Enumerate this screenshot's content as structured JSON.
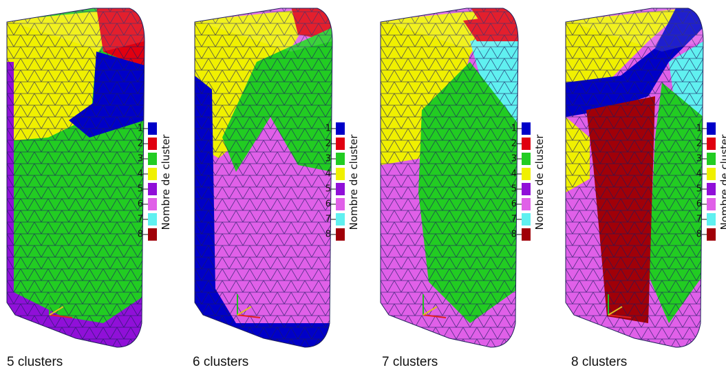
{
  "legend": {
    "title": "Nombre de cluster",
    "items": [
      {
        "label": "1",
        "color": "#0000c8"
      },
      {
        "label": "2",
        "color": "#e00010"
      },
      {
        "label": "3",
        "color": "#22cc22"
      },
      {
        "label": "4",
        "color": "#f0f000"
      },
      {
        "label": "5",
        "color": "#9010d8"
      },
      {
        "label": "6",
        "color": "#e060e8"
      },
      {
        "label": "7",
        "color": "#60f0f0"
      },
      {
        "label": "8",
        "color": "#a00008"
      }
    ]
  },
  "panels": [
    {
      "caption": "5 clusters"
    },
    {
      "caption": "6 clusters"
    },
    {
      "caption": "7 clusters"
    },
    {
      "caption": "8 clusters"
    }
  ]
}
